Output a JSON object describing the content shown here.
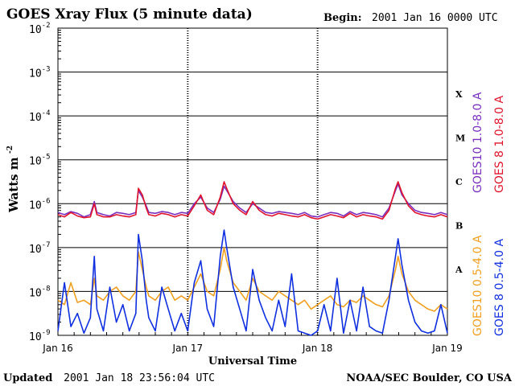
{
  "chart_data": {
    "type": "line",
    "title": "GOES Xray Flux (5 minute data)",
    "begin_label": "Begin:",
    "begin_value": "2001 Jan 16 0000 UTC",
    "ylabel": "Watts m",
    "ylabel_exp": "-2",
    "xlabel": "Universal Time",
    "yscale": "log",
    "ylim_exp": [
      -9,
      -2
    ],
    "y_ticks": [
      {
        "base": "10",
        "exp": "-2"
      },
      {
        "base": "10",
        "exp": "-3"
      },
      {
        "base": "10",
        "exp": "-4"
      },
      {
        "base": "10",
        "exp": "-5"
      },
      {
        "base": "10",
        "exp": "-6"
      },
      {
        "base": "10",
        "exp": "-7"
      },
      {
        "base": "10",
        "exp": "-8"
      },
      {
        "base": "10",
        "exp": "-9"
      }
    ],
    "x_range_days": [
      0,
      3
    ],
    "x_ticks": [
      "Jan 16",
      "Jan 17",
      "Jan 18",
      "Jan 19"
    ],
    "flare_classes": [
      "X",
      "M",
      "C",
      "B",
      "A"
    ],
    "series": [
      {
        "name": "GOES10 1.0-8.0 A",
        "color": "#7b2fbf",
        "band": "long",
        "x": [
          0,
          0.05,
          0.1,
          0.15,
          0.2,
          0.25,
          0.28,
          0.3,
          0.35,
          0.4,
          0.45,
          0.5,
          0.55,
          0.6,
          0.62,
          0.65,
          0.68,
          0.7,
          0.75,
          0.8,
          0.85,
          0.9,
          0.95,
          1.0,
          1.05,
          1.1,
          1.15,
          1.2,
          1.25,
          1.28,
          1.3,
          1.35,
          1.4,
          1.45,
          1.5,
          1.55,
          1.6,
          1.65,
          1.7,
          1.75,
          1.8,
          1.85,
          1.9,
          1.95,
          2.0,
          2.05,
          2.1,
          2.15,
          2.2,
          2.25,
          2.3,
          2.35,
          2.4,
          2.45,
          2.5,
          2.55,
          2.6,
          2.62,
          2.65,
          2.7,
          2.75,
          2.8,
          2.85,
          2.9,
          2.95,
          3.0
        ],
        "y": [
          -6.2,
          -6.25,
          -6.18,
          -6.22,
          -6.3,
          -6.25,
          -5.95,
          -6.2,
          -6.25,
          -6.28,
          -6.2,
          -6.22,
          -6.25,
          -6.2,
          -5.7,
          -5.85,
          -6.05,
          -6.2,
          -6.22,
          -6.18,
          -6.2,
          -6.25,
          -6.2,
          -6.22,
          -6.0,
          -5.85,
          -6.1,
          -6.2,
          -5.9,
          -5.6,
          -5.7,
          -5.95,
          -6.1,
          -6.2,
          -6.0,
          -6.1,
          -6.2,
          -6.22,
          -6.18,
          -6.2,
          -6.22,
          -6.25,
          -6.2,
          -6.28,
          -6.3,
          -6.25,
          -6.2,
          -6.22,
          -6.28,
          -6.18,
          -6.25,
          -6.2,
          -6.22,
          -6.25,
          -6.3,
          -6.1,
          -5.7,
          -5.55,
          -5.8,
          -6.0,
          -6.15,
          -6.2,
          -6.22,
          -6.25,
          -6.2,
          -6.25
        ]
      },
      {
        "name": "GOES 8 1.0-8.0 A",
        "color": "#e0142c",
        "band": "long",
        "x": [
          0,
          0.05,
          0.1,
          0.15,
          0.2,
          0.25,
          0.28,
          0.3,
          0.35,
          0.4,
          0.45,
          0.5,
          0.55,
          0.6,
          0.62,
          0.65,
          0.68,
          0.7,
          0.75,
          0.8,
          0.85,
          0.9,
          0.95,
          1.0,
          1.05,
          1.1,
          1.15,
          1.2,
          1.25,
          1.28,
          1.3,
          1.35,
          1.4,
          1.45,
          1.5,
          1.55,
          1.6,
          1.65,
          1.7,
          1.75,
          1.8,
          1.85,
          1.9,
          1.95,
          2.0,
          2.05,
          2.1,
          2.15,
          2.2,
          2.25,
          2.3,
          2.35,
          2.4,
          2.45,
          2.5,
          2.55,
          2.6,
          2.62,
          2.65,
          2.7,
          2.75,
          2.8,
          2.85,
          2.9,
          2.95,
          3.0
        ],
        "y": [
          -6.25,
          -6.3,
          -6.2,
          -6.28,
          -6.32,
          -6.3,
          -6.0,
          -6.25,
          -6.3,
          -6.3,
          -6.25,
          -6.28,
          -6.3,
          -6.25,
          -5.65,
          -5.8,
          -6.1,
          -6.25,
          -6.28,
          -6.22,
          -6.25,
          -6.3,
          -6.25,
          -6.28,
          -6.05,
          -5.8,
          -6.15,
          -6.25,
          -5.85,
          -5.5,
          -5.65,
          -6.0,
          -6.15,
          -6.25,
          -5.95,
          -6.15,
          -6.25,
          -6.28,
          -6.22,
          -6.25,
          -6.28,
          -6.3,
          -6.25,
          -6.32,
          -6.35,
          -6.3,
          -6.25,
          -6.28,
          -6.32,
          -6.22,
          -6.3,
          -6.25,
          -6.28,
          -6.3,
          -6.35,
          -6.15,
          -5.65,
          -5.5,
          -5.75,
          -6.05,
          -6.2,
          -6.25,
          -6.28,
          -6.3,
          -6.25,
          -6.3
        ]
      },
      {
        "name": "GOES10 0.5-4.0 A",
        "color": "#f0a020",
        "band": "short",
        "x": [
          0,
          0.05,
          0.1,
          0.15,
          0.2,
          0.25,
          0.28,
          0.3,
          0.35,
          0.4,
          0.45,
          0.5,
          0.55,
          0.6,
          0.62,
          0.65,
          0.68,
          0.7,
          0.75,
          0.8,
          0.85,
          0.9,
          0.95,
          1.0,
          1.05,
          1.1,
          1.15,
          1.2,
          1.25,
          1.28,
          1.3,
          1.35,
          1.4,
          1.45,
          1.5,
          1.55,
          1.6,
          1.65,
          1.7,
          1.75,
          1.8,
          1.85,
          1.9,
          1.95,
          2.0,
          2.05,
          2.1,
          2.15,
          2.2,
          2.25,
          2.3,
          2.35,
          2.4,
          2.45,
          2.5,
          2.55,
          2.6,
          2.62,
          2.65,
          2.7,
          2.75,
          2.8,
          2.85,
          2.9,
          2.95,
          3.0
        ],
        "y": [
          -8.2,
          -8.3,
          -7.8,
          -8.25,
          -8.2,
          -8.3,
          -7.7,
          -8.1,
          -8.2,
          -8.0,
          -7.9,
          -8.1,
          -8.2,
          -8.0,
          -7.1,
          -7.5,
          -7.9,
          -8.1,
          -8.2,
          -8.0,
          -7.9,
          -8.2,
          -8.1,
          -8.2,
          -7.9,
          -7.6,
          -8.0,
          -8.1,
          -7.5,
          -7.0,
          -7.3,
          -7.8,
          -8.0,
          -8.2,
          -7.7,
          -8.0,
          -8.1,
          -8.2,
          -8.0,
          -8.1,
          -8.2,
          -8.3,
          -8.2,
          -8.4,
          -8.3,
          -8.2,
          -8.1,
          -8.3,
          -8.35,
          -8.2,
          -8.25,
          -8.1,
          -8.2,
          -8.3,
          -8.35,
          -8.1,
          -7.5,
          -7.2,
          -7.6,
          -8.0,
          -8.2,
          -8.3,
          -8.4,
          -8.45,
          -8.3,
          -8.4
        ]
      },
      {
        "name": "GOES 8 0.5-4.0 A",
        "color": "#1030e0",
        "band": "short",
        "x": [
          0,
          0.05,
          0.1,
          0.15,
          0.2,
          0.25,
          0.28,
          0.3,
          0.35,
          0.4,
          0.45,
          0.5,
          0.55,
          0.6,
          0.62,
          0.65,
          0.68,
          0.7,
          0.75,
          0.8,
          0.85,
          0.9,
          0.95,
          1.0,
          1.05,
          1.1,
          1.15,
          1.2,
          1.25,
          1.28,
          1.3,
          1.35,
          1.4,
          1.45,
          1.5,
          1.55,
          1.6,
          1.65,
          1.7,
          1.75,
          1.8,
          1.85,
          1.9,
          1.95,
          2.0,
          2.05,
          2.1,
          2.15,
          2.2,
          2.25,
          2.3,
          2.35,
          2.4,
          2.45,
          2.5,
          2.55,
          2.6,
          2.62,
          2.65,
          2.7,
          2.75,
          2.8,
          2.85,
          2.9,
          2.95,
          3.0
        ],
        "y": [
          -8.9,
          -7.8,
          -8.8,
          -8.5,
          -8.95,
          -8.6,
          -7.2,
          -8.4,
          -8.9,
          -7.9,
          -8.7,
          -8.3,
          -8.9,
          -8.5,
          -6.7,
          -7.3,
          -8.2,
          -8.6,
          -8.9,
          -7.9,
          -8.4,
          -8.9,
          -8.5,
          -8.9,
          -7.8,
          -7.3,
          -8.4,
          -8.8,
          -7.2,
          -6.6,
          -7.0,
          -7.9,
          -8.4,
          -8.9,
          -7.5,
          -8.2,
          -8.6,
          -8.9,
          -8.2,
          -8.8,
          -7.6,
          -8.9,
          -8.95,
          -9.0,
          -8.9,
          -8.3,
          -8.9,
          -7.7,
          -8.95,
          -8.2,
          -8.9,
          -7.9,
          -8.8,
          -8.9,
          -8.95,
          -8.2,
          -7.2,
          -6.8,
          -7.4,
          -8.2,
          -8.7,
          -8.9,
          -8.95,
          -8.9,
          -8.3,
          -8.95
        ]
      }
    ]
  },
  "footer": {
    "updated_label": "Updated",
    "updated_value": "2001 Jan 18 23:56:04 UTC",
    "credit": "NOAA/SEC Boulder, CO USA"
  }
}
